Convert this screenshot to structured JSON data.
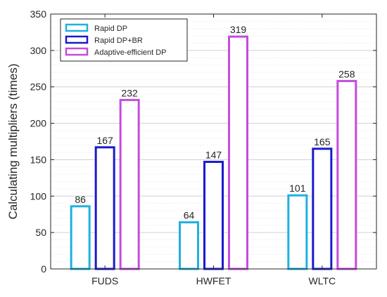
{
  "chart_data": {
    "type": "bar",
    "title": "",
    "xlabel": "",
    "ylabel": "Calculating  multipliers  (times)",
    "ylim": [
      0,
      350
    ],
    "yticks": [
      0,
      50,
      100,
      150,
      200,
      250,
      300,
      350
    ],
    "categories": [
      "FUDS",
      "HWFET",
      "WLTC"
    ],
    "series": [
      {
        "name": "Rapid DP",
        "color": "#1fb1e0",
        "values": [
          86,
          64,
          101
        ]
      },
      {
        "name": "Rapid DP+BR",
        "color": "#1a1acc",
        "values": [
          167,
          147,
          165
        ]
      },
      {
        "name": "Adaptive-efficient DP",
        "color": "#c54bdf",
        "values": [
          232,
          319,
          258
        ]
      }
    ],
    "grid": true,
    "legend_position": "top-left",
    "bar_style": "outline"
  }
}
